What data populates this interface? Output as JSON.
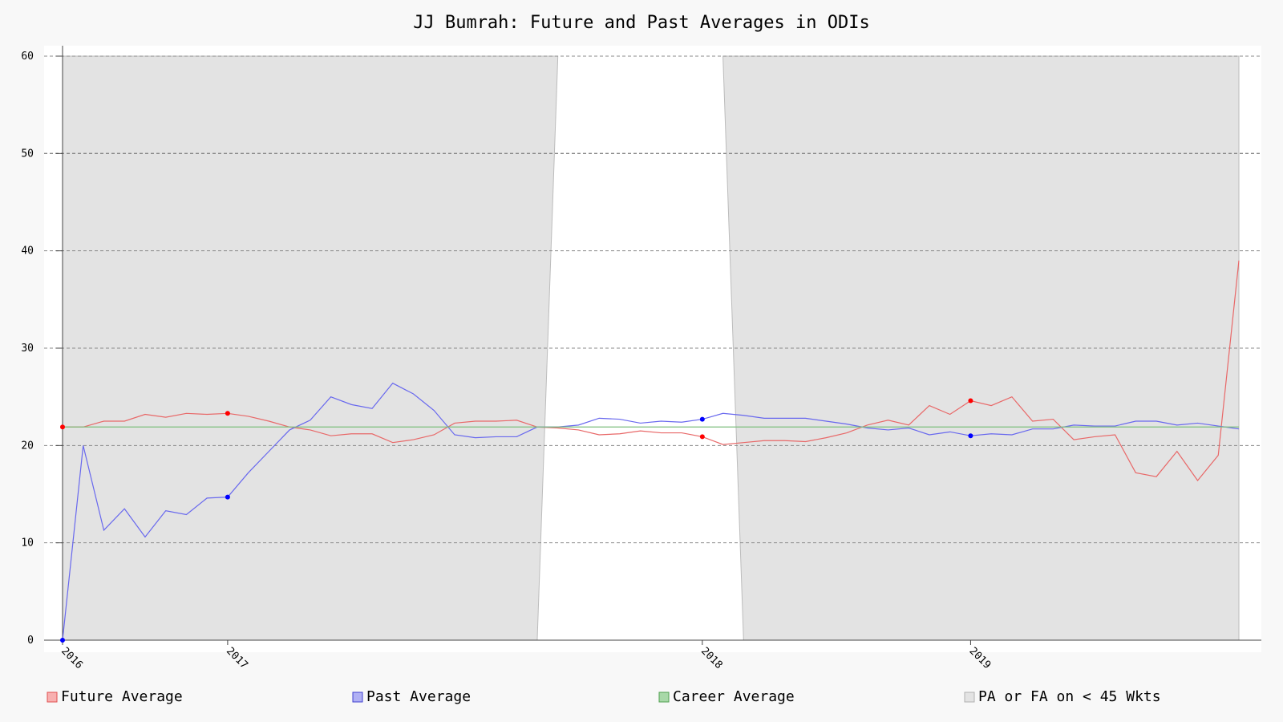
{
  "chart_data": {
    "type": "line",
    "title": "JJ Bumrah: Future and Past Averages in ODIs",
    "xlabel": "",
    "ylabel": "",
    "ylim": [
      0,
      60
    ],
    "yticks": [
      0,
      10,
      20,
      30,
      40,
      50,
      60
    ],
    "x_ticks": [
      {
        "label": "2016",
        "index": 0
      },
      {
        "label": "2017",
        "index": 8
      },
      {
        "label": "2018",
        "index": 31
      },
      {
        "label": "2019",
        "index": 44
      }
    ],
    "grid": true,
    "legend_position": "bottom",
    "legend": [
      {
        "label": "Future Average",
        "key": "future"
      },
      {
        "label": "Past Average",
        "key": "past"
      },
      {
        "label": "Career Average",
        "key": "career"
      },
      {
        "label": "PA or FA on < 45 Wkts",
        "key": "shade"
      }
    ],
    "num_points": 58,
    "series": [
      {
        "name": "Future Average",
        "key": "future",
        "values": [
          21.9,
          21.9,
          22.5,
          22.5,
          23.2,
          22.9,
          23.3,
          23.2,
          23.3,
          23.0,
          22.5,
          21.9,
          21.6,
          21.0,
          21.2,
          21.2,
          20.3,
          20.6,
          21.1,
          22.3,
          22.5,
          22.5,
          22.6,
          21.9,
          21.8,
          21.6,
          21.1,
          21.2,
          21.5,
          21.3,
          21.3,
          20.9,
          20.1,
          20.3,
          20.5,
          20.5,
          20.4,
          20.8,
          21.3,
          22.1,
          22.6,
          22.1,
          24.1,
          23.2,
          24.6,
          24.1,
          25.0,
          22.5,
          22.7,
          20.6,
          20.9,
          21.1,
          17.2,
          16.8,
          19.4,
          16.4,
          19.0,
          39.0
        ],
        "highlight": [
          0,
          8,
          31,
          44
        ]
      },
      {
        "name": "Past Average",
        "key": "past",
        "values": [
          0.0,
          20.0,
          11.3,
          13.5,
          10.6,
          13.3,
          12.9,
          14.6,
          14.7,
          17.2,
          19.4,
          21.6,
          22.6,
          25.0,
          24.2,
          23.8,
          26.4,
          25.3,
          23.6,
          21.1,
          20.8,
          20.9,
          20.9,
          21.9,
          21.9,
          22.1,
          22.8,
          22.7,
          22.3,
          22.5,
          22.4,
          22.7,
          23.3,
          23.1,
          22.8,
          22.8,
          22.8,
          22.5,
          22.2,
          21.8,
          21.6,
          21.8,
          21.1,
          21.4,
          21.0,
          21.2,
          21.1,
          21.7,
          21.7,
          22.1,
          22.0,
          22.0,
          22.5,
          22.5,
          22.1,
          22.3,
          22.0,
          21.7
        ],
        "highlight": [
          0,
          8,
          31,
          44
        ]
      },
      {
        "name": "Career Average",
        "key": "career",
        "values": [
          21.9
        ]
      }
    ],
    "shaded_regions": [
      {
        "from_index": 0,
        "to_index": 23,
        "upper_to_index": 24
      },
      {
        "from_index": 33,
        "upper_from_index": 32,
        "to_index": 57
      }
    ],
    "colors": {
      "future": "#e86868",
      "future_marker": "#ff0000",
      "past": "#6868ee",
      "past_marker": "#0000ff",
      "career": "#7ebf7e",
      "shade_fill": "#e3e3e3",
      "shade_edge": "#bcbcbc",
      "grid": "#888888",
      "axis": "#444444",
      "plot_bg": "#ffffff",
      "page_bg": "#f8f8f8"
    }
  }
}
